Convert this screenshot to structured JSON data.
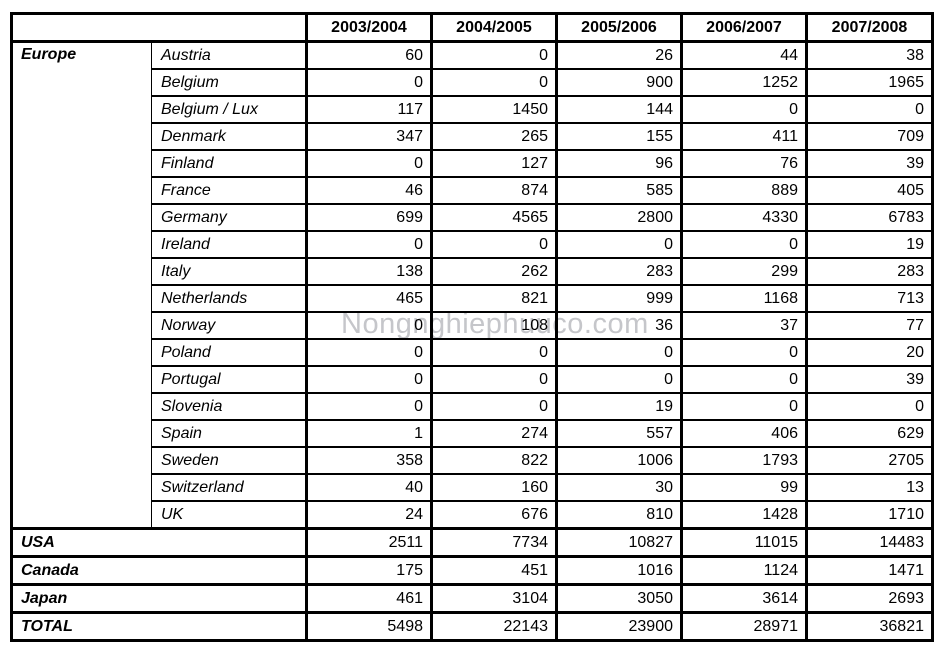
{
  "watermark": "Nongnghiephuuco.com",
  "table": {
    "columns": [
      "2003/2004",
      "2004/2005",
      "2005/2006",
      "2006/2007",
      "2007/2008"
    ],
    "europe_label": "Europe",
    "europe_rows": [
      {
        "name": "Austria",
        "values": [
          60,
          0,
          26,
          44,
          38
        ]
      },
      {
        "name": "Belgium",
        "values": [
          0,
          0,
          900,
          1252,
          1965
        ]
      },
      {
        "name": "Belgium / Lux",
        "values": [
          117,
          1450,
          144,
          0,
          0
        ]
      },
      {
        "name": "Denmark",
        "values": [
          347,
          265,
          155,
          411,
          709
        ]
      },
      {
        "name": "Finland",
        "values": [
          0,
          127,
          96,
          76,
          39
        ]
      },
      {
        "name": "France",
        "values": [
          46,
          874,
          585,
          889,
          405
        ]
      },
      {
        "name": "Germany",
        "values": [
          699,
          4565,
          2800,
          4330,
          6783
        ]
      },
      {
        "name": "Ireland",
        "values": [
          0,
          0,
          0,
          0,
          19
        ]
      },
      {
        "name": "Italy",
        "values": [
          138,
          262,
          283,
          299,
          283
        ]
      },
      {
        "name": "Netherlands",
        "values": [
          465,
          821,
          999,
          1168,
          713
        ]
      },
      {
        "name": "Norway",
        "values": [
          0,
          108,
          36,
          37,
          77
        ]
      },
      {
        "name": "Poland",
        "values": [
          0,
          0,
          0,
          0,
          20
        ]
      },
      {
        "name": "Portugal",
        "values": [
          0,
          0,
          0,
          0,
          39
        ]
      },
      {
        "name": "Slovenia",
        "values": [
          0,
          0,
          19,
          0,
          0
        ]
      },
      {
        "name": "Spain",
        "values": [
          1,
          274,
          557,
          406,
          629
        ]
      },
      {
        "name": "Sweden",
        "values": [
          358,
          822,
          1006,
          1793,
          2705
        ]
      },
      {
        "name": "Switzerland",
        "values": [
          40,
          160,
          30,
          99,
          13
        ]
      },
      {
        "name": "UK",
        "values": [
          24,
          676,
          810,
          1428,
          1710
        ]
      }
    ],
    "summary_rows": [
      {
        "name": "USA",
        "values": [
          2511,
          7734,
          10827,
          11015,
          14483
        ]
      },
      {
        "name": "Canada",
        "values": [
          175,
          451,
          1016,
          1124,
          1471
        ]
      },
      {
        "name": "Japan",
        "values": [
          461,
          3104,
          3050,
          3614,
          2693
        ]
      },
      {
        "name": "TOTAL",
        "values": [
          5498,
          22143,
          23900,
          28971,
          36821
        ]
      }
    ]
  }
}
